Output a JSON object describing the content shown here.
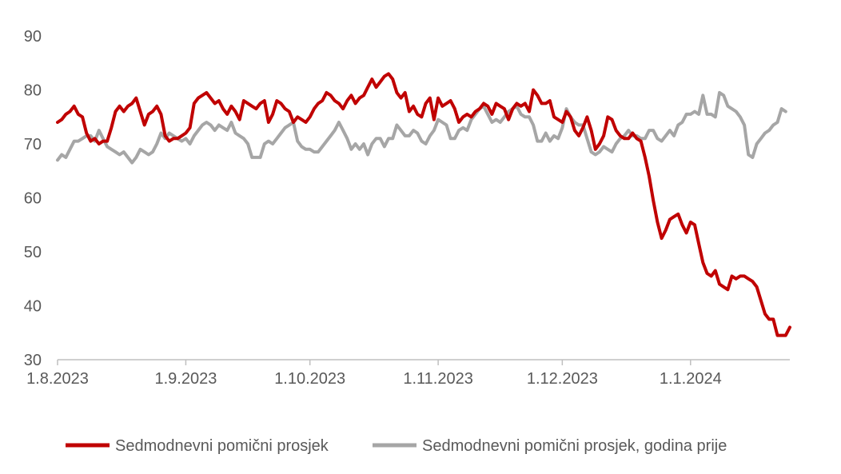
{
  "chart_data": {
    "type": "line",
    "title": "",
    "xlabel": "",
    "ylabel": "",
    "x_start": "2023-08-01",
    "x_end": "2024-01-23",
    "x_ticks": [
      {
        "label": "1.8.2023",
        "day": 0
      },
      {
        "label": "1.9.2023",
        "day": 31
      },
      {
        "label": "1.10.2023",
        "day": 61
      },
      {
        "label": "1.11.2023",
        "day": 92
      },
      {
        "label": "1.12.2023",
        "day": 122
      },
      {
        "label": "1.1.2024",
        "day": 153
      }
    ],
    "y_ticks": [
      30,
      40,
      50,
      60,
      70,
      80,
      90
    ],
    "ylim": [
      30,
      90
    ],
    "grid": false,
    "legend_position": "bottom",
    "series": [
      {
        "name": "Sedmodnevni pomični prosjek",
        "color": "#C00000",
        "values": [
          74,
          74.5,
          75.5,
          76,
          77,
          75.5,
          75,
          72,
          70.5,
          71,
          70,
          70.5,
          70.5,
          73,
          76,
          77,
          76,
          77,
          77.5,
          78.5,
          76,
          73.5,
          75.5,
          76,
          77,
          75.5,
          71.5,
          70.5,
          71,
          71,
          71.5,
          72,
          73,
          77.5,
          78.5,
          79,
          79.5,
          78.5,
          77.5,
          78,
          76.5,
          75.5,
          77,
          76,
          74.5,
          78,
          77.5,
          77,
          76.5,
          77.5,
          78,
          74,
          75.5,
          78,
          77.5,
          76.5,
          76,
          74,
          75,
          74.5,
          74,
          75,
          76.5,
          77.5,
          78,
          79.5,
          79,
          78,
          77.5,
          76.5,
          78,
          79,
          77.5,
          78.5,
          79,
          80.5,
          82,
          80.5,
          81.5,
          82.5,
          83,
          82,
          79.5,
          78.5,
          79.5,
          76,
          77,
          75.5,
          75,
          77.5,
          78.5,
          74.5,
          78.5,
          77,
          77.5,
          78,
          76.5,
          74,
          75,
          75.5,
          75,
          76,
          76.5,
          77.5,
          77,
          75.5,
          77.5,
          77,
          76.5,
          74.5,
          76.5,
          77.5,
          77,
          77.5,
          76,
          80,
          79,
          77.5,
          77.5,
          78,
          75,
          74.5,
          74,
          76,
          75,
          72.5,
          71.5,
          73,
          75,
          72.5,
          69,
          70,
          71.5,
          75,
          74.5,
          72.5,
          71.5,
          71,
          71,
          72,
          71,
          70.5,
          67.5,
          64,
          59.5,
          55.5,
          52.5,
          54,
          56,
          56.5,
          57,
          55,
          53.5,
          55.5,
          55,
          51.5,
          48,
          46,
          45.5,
          46.5,
          44,
          43.5,
          43,
          45.5,
          45,
          45.5,
          45.5,
          45,
          44.5,
          43.5,
          41,
          38.5,
          37.5,
          37.5,
          34.5,
          34.5,
          34.5,
          36
        ]
      },
      {
        "name": "Sedmodnevni pomični prosjek, godina prije",
        "color": "#A6A6A6",
        "values": [
          67,
          68,
          67.5,
          69,
          70.5,
          70.5,
          71,
          71.5,
          71.5,
          70.5,
          72.5,
          71,
          69.5,
          69,
          68.5,
          68,
          68.5,
          67.5,
          66.5,
          67.5,
          69,
          68.5,
          68,
          68.5,
          70,
          72,
          71,
          72,
          71.5,
          71,
          70.5,
          71,
          70,
          71.5,
          72.5,
          73.5,
          74,
          73.5,
          72.5,
          73.5,
          73,
          72.5,
          74,
          72,
          71.5,
          71,
          70,
          67.5,
          67.5,
          67.5,
          70,
          70.5,
          70,
          71,
          72,
          73,
          73.5,
          74,
          70.5,
          69.5,
          69,
          69,
          68.5,
          68.5,
          69.5,
          70.5,
          71.5,
          72.5,
          74,
          72.5,
          71,
          69,
          70,
          69,
          70,
          68,
          70,
          71,
          71,
          69.5,
          71,
          71,
          73.5,
          72.5,
          71.5,
          71.5,
          72.5,
          72,
          70.5,
          70,
          71.5,
          72.5,
          74.5,
          74,
          73.5,
          71,
          71,
          72.5,
          73,
          72.5,
          74.5,
          75.5,
          76.5,
          77,
          75.5,
          74,
          74.5,
          74,
          75,
          76,
          76.5,
          77,
          75.5,
          75,
          75,
          73.5,
          70.5,
          70.5,
          72,
          70.5,
          71.5,
          71,
          73,
          76.5,
          75,
          74,
          73.5,
          73.5,
          71,
          68.5,
          68,
          68.5,
          69.5,
          69,
          68.5,
          70,
          71,
          71.5,
          72.5,
          71.5,
          71.5,
          71,
          71,
          72.5,
          72.5,
          71,
          70.5,
          71.5,
          72.5,
          71.5,
          73.5,
          74,
          75.5,
          75.5,
          76,
          75.5,
          79,
          75.5,
          75.5,
          75,
          79.5,
          79,
          77,
          76.5,
          76,
          75,
          73.5,
          68,
          67.5,
          70,
          71,
          72,
          72.5,
          73.5,
          74,
          76.5,
          76
        ]
      }
    ]
  }
}
